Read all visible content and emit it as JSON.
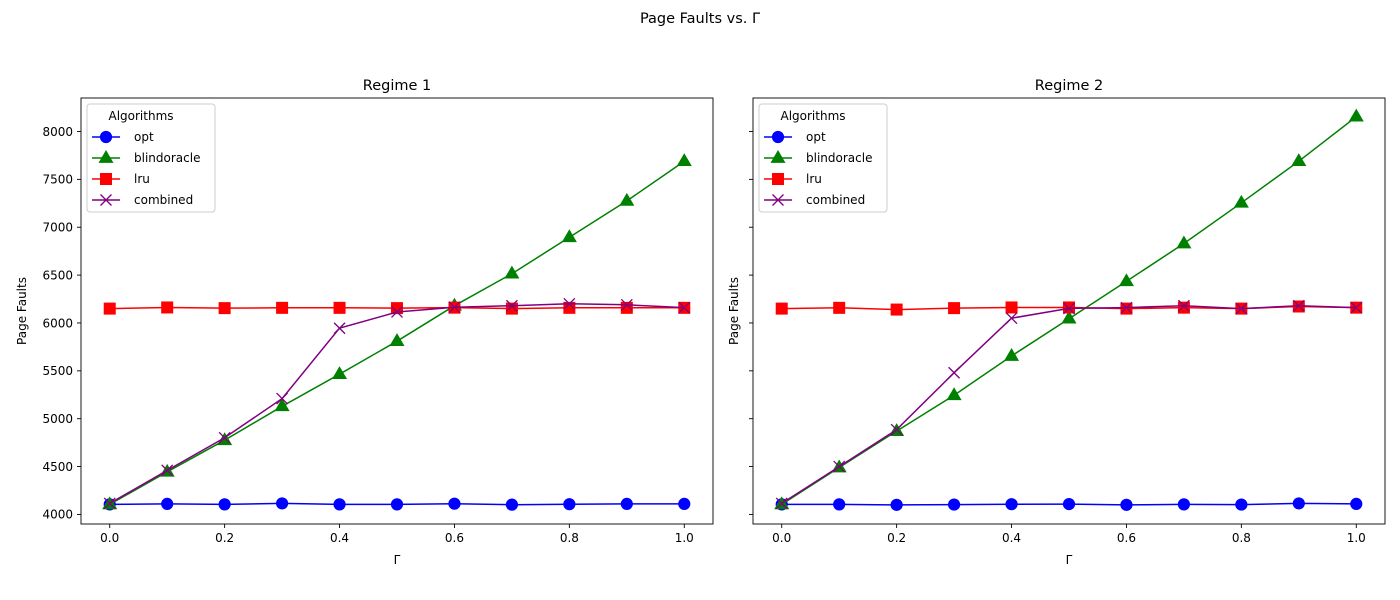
{
  "figure": {
    "suptitle": "Page Faults vs. Γ"
  },
  "chart_data": [
    {
      "type": "line",
      "title": "Regime 1",
      "xlabel": "Γ",
      "ylabel": "Page Faults",
      "xlim": [
        -0.05,
        1.05
      ],
      "ylim": [
        3900,
        8350
      ],
      "xticks": [
        0.0,
        0.2,
        0.4,
        0.6,
        0.8,
        1.0
      ],
      "xtick_labels": [
        "0.0",
        "0.2",
        "0.4",
        "0.6",
        "0.8",
        "1.0"
      ],
      "yticks": [
        4000,
        4500,
        5000,
        5500,
        6000,
        6500,
        7000,
        7500,
        8000
      ],
      "ytick_labels": [
        "4000",
        "4500",
        "5000",
        "5500",
        "6000",
        "6500",
        "7000",
        "7500",
        "8000"
      ],
      "show_ytick_labels": true,
      "grid": false,
      "legend": {
        "title": "Algorithms",
        "position": "upper-left"
      },
      "x": [
        0.0,
        0.1,
        0.2,
        0.3,
        0.4,
        0.5,
        0.6,
        0.7,
        0.8,
        0.9,
        1.0
      ],
      "series": [
        {
          "name": "opt",
          "color": "#0000ff",
          "marker": "circle",
          "values": [
            4105,
            4110,
            4105,
            4115,
            4105,
            4105,
            4112,
            4102,
            4107,
            4110,
            4110
          ]
        },
        {
          "name": "blindoracle",
          "color": "#008000",
          "marker": "triangle",
          "values": [
            4105,
            4445,
            4775,
            5130,
            5465,
            5810,
            6180,
            6515,
            6895,
            7275,
            7690
          ]
        },
        {
          "name": "lru",
          "color": "#ff0000",
          "marker": "square",
          "values": [
            6150,
            6162,
            6155,
            6158,
            6158,
            6155,
            6160,
            6150,
            6158,
            6158,
            6158
          ]
        },
        {
          "name": "combined",
          "color": "#800080",
          "marker": "x",
          "values": [
            4115,
            4460,
            4800,
            5210,
            5945,
            6115,
            6165,
            6180,
            6200,
            6190,
            6160
          ]
        }
      ]
    },
    {
      "type": "line",
      "title": "Regime 2",
      "xlabel": "Γ",
      "ylabel": "Page Faults",
      "xlim": [
        -0.05,
        1.05
      ],
      "ylim": [
        3900,
        8350
      ],
      "xticks": [
        0.0,
        0.2,
        0.4,
        0.6,
        0.8,
        1.0
      ],
      "xtick_labels": [
        "0.0",
        "0.2",
        "0.4",
        "0.6",
        "0.8",
        "1.0"
      ],
      "yticks": [
        4000,
        4500,
        5000,
        5500,
        6000,
        6500,
        7000,
        7500,
        8000
      ],
      "ytick_labels": [],
      "show_ytick_labels": false,
      "grid": false,
      "legend": {
        "title": "Algorithms",
        "position": "upper-left"
      },
      "x": [
        0.0,
        0.1,
        0.2,
        0.3,
        0.4,
        0.5,
        0.6,
        0.7,
        0.8,
        0.9,
        1.0
      ],
      "series": [
        {
          "name": "opt",
          "color": "#0000ff",
          "marker": "circle",
          "values": [
            4105,
            4105,
            4100,
            4103,
            4107,
            4108,
            4100,
            4105,
            4103,
            4115,
            4110
          ]
        },
        {
          "name": "blindoracle",
          "color": "#008000",
          "marker": "triangle",
          "values": [
            4105,
            4490,
            4870,
            5245,
            5655,
            6045,
            6435,
            6830,
            7255,
            7690,
            8155
          ]
        },
        {
          "name": "lru",
          "color": "#ff0000",
          "marker": "square",
          "values": [
            6150,
            6158,
            6140,
            6155,
            6162,
            6162,
            6150,
            6160,
            6150,
            6172,
            6160
          ]
        },
        {
          "name": "combined",
          "color": "#800080",
          "marker": "x",
          "values": [
            4115,
            4500,
            4885,
            5480,
            6050,
            6152,
            6160,
            6180,
            6150,
            6180,
            6160
          ]
        }
      ]
    }
  ]
}
